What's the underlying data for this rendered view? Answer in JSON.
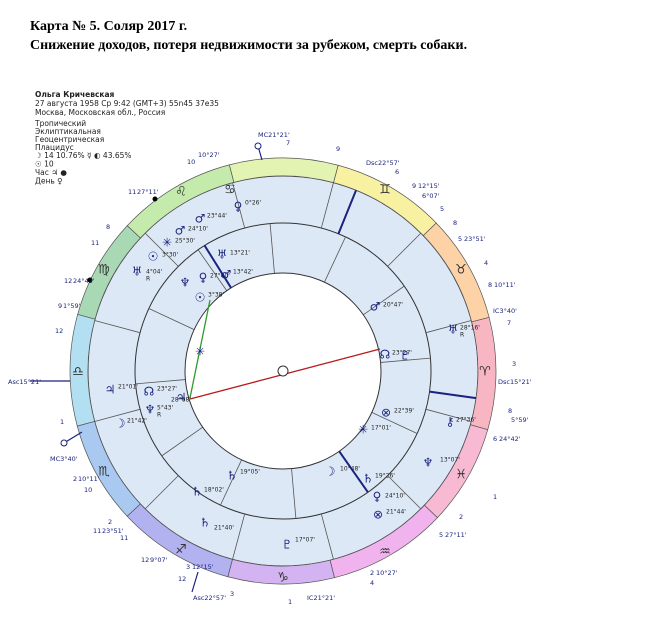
{
  "header": {
    "title": "Карта № 5. Соляр 2017 г.",
    "subtitle": "Снижение доходов, потеря недвижимости за рубежом, смерть собаки."
  },
  "info": {
    "name": "Ольга Кричевская",
    "date": "27 августа 1958  Ср   9:42 (GMT+3) 55n45  37e35",
    "place": "Москва, Московская обл., Россия"
  },
  "settings": [
    "Тропический",
    "Эклиптикальная",
    "Геоцентрическая",
    "Плацидус"
  ],
  "phase": [
    "☽ 14 10.76%  ☿ ◐ 43.65%",
    "☉ 10",
    "Час ♃ ●",
    "День ♀"
  ],
  "sign_glyphs": [
    "♋",
    "♊",
    "♉",
    "♈",
    "♓",
    "♒",
    "♑",
    "♐",
    "♏",
    "♎",
    "♍",
    "♌"
  ],
  "outer_labels": [
    "MC21°21'",
    "7",
    "10°27'",
    "10",
    "9",
    "Dsc22°57'",
    "6",
    "9",
    "12°15'",
    "6°07'",
    "5",
    "8",
    "5",
    "23°51'",
    "4",
    "8",
    "10°11'",
    "IC3°40'",
    "7",
    "3",
    "Dsc15°21'",
    "8",
    "5°59'",
    "6",
    "24°42'",
    "1",
    "2",
    "5",
    "27°11'",
    "2",
    "10°27'",
    "4",
    "IC21°21'",
    "1",
    "3",
    "Asc22°57'",
    "12",
    "3",
    "12°15'",
    "12",
    "9°07'",
    "11",
    "11",
    "23°51'",
    "2",
    "10",
    "2",
    "10°11'",
    "1",
    "MC3°40'",
    "Asc15°21'",
    "12",
    "9",
    "1°59'",
    "12",
    "24°42'",
    "11",
    "8",
    "11",
    "27°11'"
  ],
  "planets": [
    {
      "glyph": "♀",
      "degree": "0°26'"
    },
    {
      "glyph": "♂",
      "degree": "23°44'"
    },
    {
      "glyph": "♂",
      "degree": "24°10'"
    },
    {
      "glyph": "✳",
      "degree": "25°30'"
    },
    {
      "glyph": "☉",
      "degree": "3°30'"
    },
    {
      "glyph": "♅",
      "degree": "4°04'",
      "retro": "R"
    },
    {
      "glyph": "♅",
      "degree": "13°21'"
    },
    {
      "glyph": "♀",
      "degree": "27°00'"
    },
    {
      "glyph": "♂",
      "degree": "13°42'"
    },
    {
      "glyph": "☉",
      "degree": "3°38'"
    },
    {
      "glyph": "♆"
    },
    {
      "glyph": "✳"
    },
    {
      "glyph": "♂",
      "degree": "20°47'"
    },
    {
      "glyph": "♅",
      "degree": "28°16'",
      "retro": "R"
    },
    {
      "glyph": "☊",
      "degree": "23°27'"
    },
    {
      "glyph": "♇"
    },
    {
      "glyph": "♃",
      "degree": "21°01'"
    },
    {
      "glyph": "☊",
      "degree": "23°27'"
    },
    {
      "glyph": "♃",
      "degree": "28°08'"
    },
    {
      "glyph": "♆",
      "degree": "5°43'",
      "retro": "R"
    },
    {
      "glyph": "☽",
      "degree": "21°42'"
    },
    {
      "glyph": "⊗",
      "degree": "22°39'"
    },
    {
      "glyph": "✳",
      "degree": "17°01'"
    },
    {
      "glyph": "⚷",
      "degree": "27°36'"
    },
    {
      "glyph": "♆",
      "degree": "13°07'"
    },
    {
      "glyph": "☽",
      "degree": "10°48'"
    },
    {
      "glyph": "♄",
      "degree": "19°26'"
    },
    {
      "glyph": "♀",
      "degree": "24°10'"
    },
    {
      "glyph": "⊗",
      "degree": "21°44'"
    },
    {
      "glyph": "♄",
      "degree": "19°05'"
    },
    {
      "glyph": "♄",
      "degree": "18°02'"
    },
    {
      "glyph": "♄",
      "degree": "21°40'"
    },
    {
      "glyph": "♇",
      "degree": "17°07'"
    }
  ]
}
